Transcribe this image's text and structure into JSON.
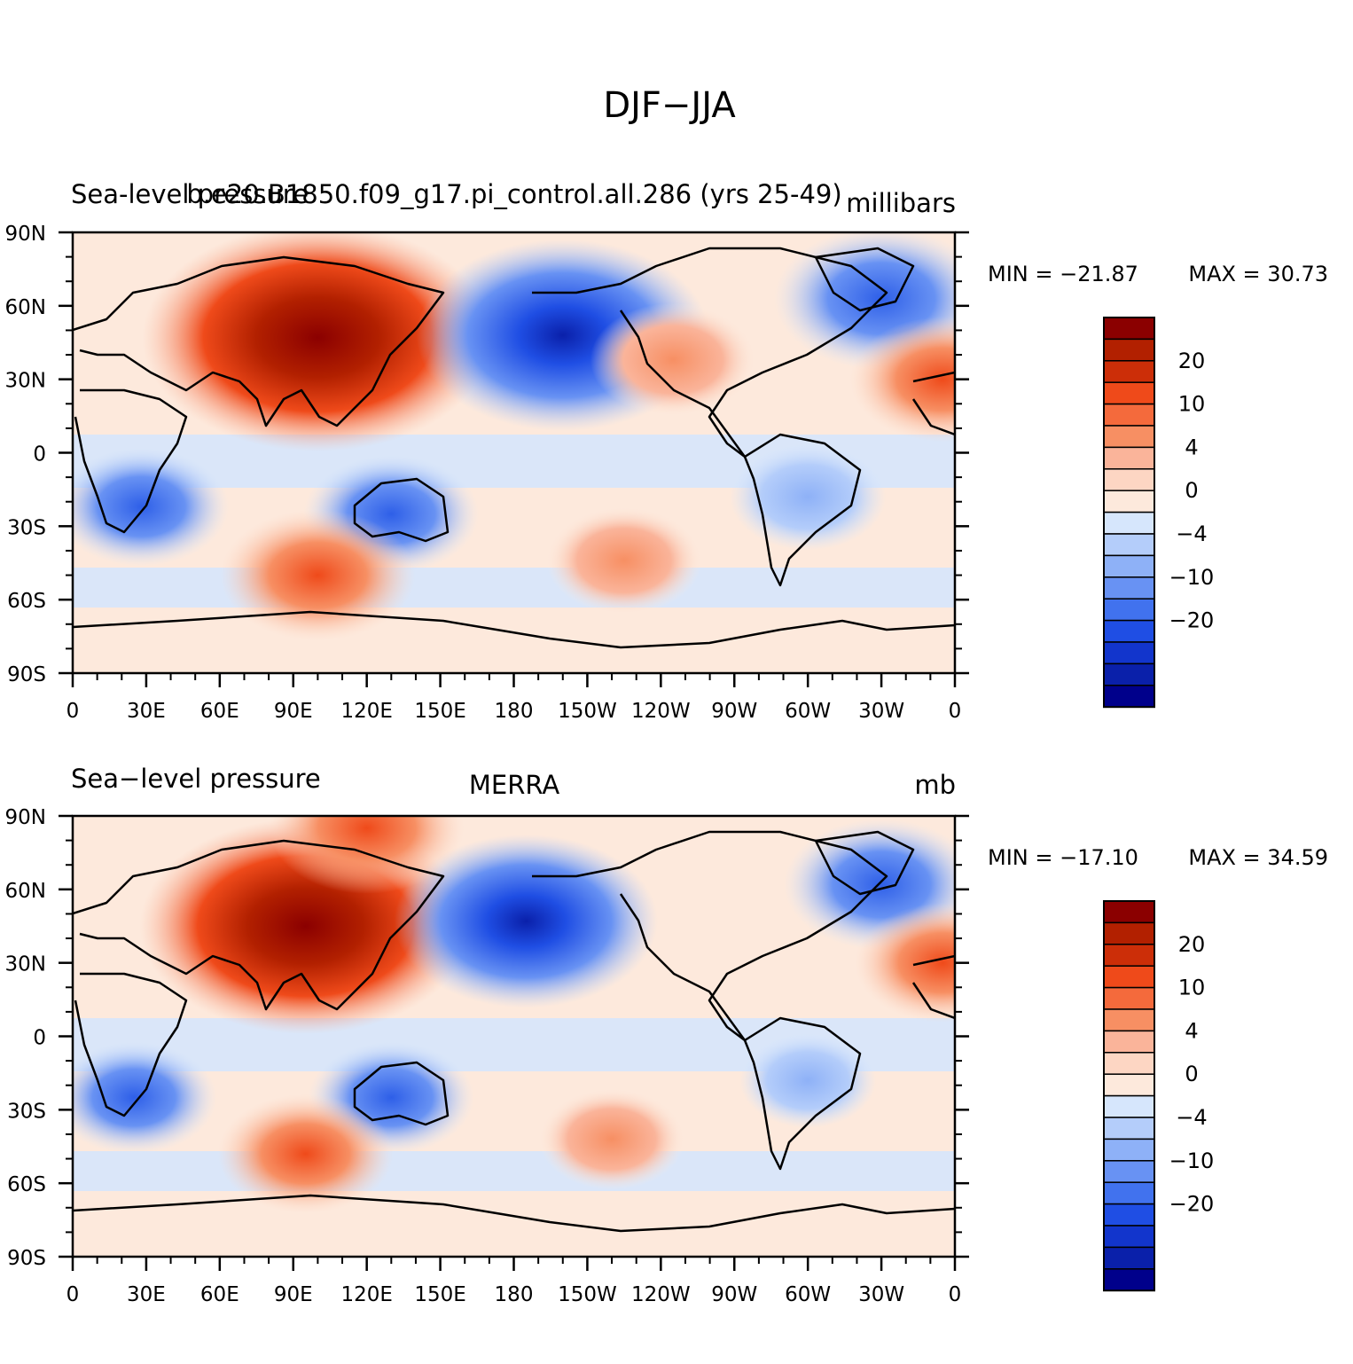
{
  "figure": {
    "title": "DJF−JJA"
  },
  "colorbar": {
    "levels_label": [
      "20",
      "10",
      "4",
      "0",
      "−4",
      "−10",
      "−20"
    ],
    "colors": [
      "#8b0000",
      "#b22000",
      "#cc2e08",
      "#ef4a1a",
      "#f46a3c",
      "#f78f63",
      "#fab49a",
      "#fdd6c3",
      "#fde9dc",
      "#d6e6fc",
      "#b4cdfa",
      "#8eb1f7",
      "#6892f3",
      "#4172ee",
      "#1f4ee4",
      "#1235cc",
      "#0a20aa",
      "#00008b"
    ]
  },
  "chart_data": [
    {
      "type": "heatmap",
      "id": "model",
      "left_title": "Sea-level pressure",
      "center_title": "b.e20.B1850.f09_g17.pi_control.all.286 (yrs 25-49)",
      "units": "millibars",
      "min_label": "MIN = −21.87",
      "max_label": "MAX =   30.73",
      "min": -21.87,
      "max": 30.73,
      "ylim": [
        -90,
        90
      ],
      "xlim": [
        0,
        360
      ],
      "yticks": [
        "90N",
        "60N",
        "30N",
        "0",
        "30S",
        "60S",
        "90S"
      ],
      "xticks": [
        "0",
        "30E",
        "60E",
        "90E",
        "120E",
        "150E",
        "180",
        "150W",
        "120W",
        "90W",
        "60W",
        "30W",
        "0"
      ],
      "colorbar_ticks": [
        20,
        10,
        4,
        0,
        -4,
        -10,
        -20
      ],
      "features": [
        {
          "name": "siberian-high",
          "lon": 100,
          "lat": 47,
          "value": 26
        },
        {
          "name": "aleutian-low",
          "lon": 200,
          "lat": 48,
          "value": -20
        },
        {
          "name": "icelandic-low",
          "lon": 330,
          "lat": 63,
          "value": -12
        },
        {
          "name": "australia-low",
          "lon": 130,
          "lat": -25,
          "value": -8
        },
        {
          "name": "south-africa-low",
          "lon": 28,
          "lat": -22,
          "value": -8
        },
        {
          "name": "south-america-low",
          "lon": 300,
          "lat": -18,
          "value": -6
        },
        {
          "name": "s-indian-ocean-high",
          "lon": 100,
          "lat": -50,
          "value": 10
        },
        {
          "name": "s-pacific-high",
          "lon": 225,
          "lat": -44,
          "value": 6
        },
        {
          "name": "n-america-high",
          "lon": 245,
          "lat": 38,
          "value": 7
        },
        {
          "name": "n-atlantic-high",
          "lon": 355,
          "lat": 30,
          "value": 9
        }
      ]
    },
    {
      "type": "heatmap",
      "id": "obs",
      "left_title": "Sea−level pressure",
      "center_title": "MERRA",
      "units": "mb",
      "min_label": "MIN = −17.10",
      "max_label": "MAX =   34.59",
      "min": -17.1,
      "max": 34.59,
      "ylim": [
        -90,
        90
      ],
      "xlim": [
        0,
        360
      ],
      "yticks": [
        "90N",
        "60N",
        "30N",
        "0",
        "30S",
        "60S",
        "90S"
      ],
      "xticks": [
        "0",
        "30E",
        "60E",
        "90E",
        "120E",
        "150E",
        "180",
        "150W",
        "120W",
        "90W",
        "60W",
        "30W",
        "0"
      ],
      "colorbar_ticks": [
        20,
        10,
        4,
        0,
        -4,
        -10,
        -20
      ],
      "features": [
        {
          "name": "siberian-high",
          "lon": 95,
          "lat": 45,
          "value": 24
        },
        {
          "name": "aleutian-low",
          "lon": 185,
          "lat": 47,
          "value": -17
        },
        {
          "name": "icelandic-low",
          "lon": 330,
          "lat": 62,
          "value": -10
        },
        {
          "name": "australia-low",
          "lon": 130,
          "lat": -25,
          "value": -7
        },
        {
          "name": "south-africa-low",
          "lon": 25,
          "lat": -25,
          "value": -7
        },
        {
          "name": "south-america-low",
          "lon": 300,
          "lat": -18,
          "value": -4
        },
        {
          "name": "s-indian-ocean-high",
          "lon": 95,
          "lat": -48,
          "value": 8
        },
        {
          "name": "s-pacific-high",
          "lon": 220,
          "lat": -42,
          "value": 5
        },
        {
          "name": "arctic-high",
          "lon": 120,
          "lat": 85,
          "value": 10
        },
        {
          "name": "n-atlantic-high",
          "lon": 355,
          "lat": 30,
          "value": 8
        }
      ]
    }
  ]
}
